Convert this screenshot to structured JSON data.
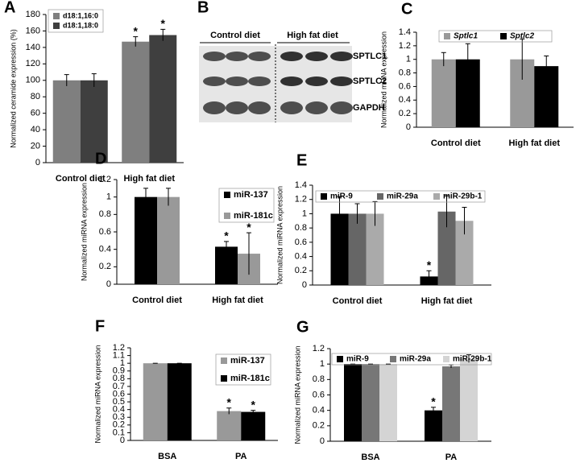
{
  "chart_data": [
    {
      "type": "bar",
      "panel": "A",
      "ylabel": "Normalized ceramide expression (%)",
      "categories": [
        "Control diet",
        "High fat diet"
      ],
      "ylim": [
        0,
        180
      ],
      "yticks": [
        0,
        20,
        40,
        60,
        80,
        100,
        120,
        140,
        160,
        180
      ],
      "legend": "upper left",
      "series": [
        {
          "name": "d18:1,16:0",
          "color": "#7f7f7f",
          "values": [
            100,
            147
          ],
          "errors": [
            7,
            6
          ],
          "significance": [
            null,
            "*"
          ]
        },
        {
          "name": "d18:1,18:0",
          "color": "#3f3f3f",
          "values": [
            100,
            155
          ],
          "errors": [
            8,
            7
          ],
          "significance": [
            null,
            "*"
          ]
        }
      ]
    },
    {
      "type": "blot",
      "panel": "B",
      "groups": [
        "Control diet",
        "High fat diet"
      ],
      "bands": [
        "SPTLC1",
        "SPTLC2",
        "GAPDH"
      ]
    },
    {
      "type": "bar",
      "panel": "C",
      "ylabel": "Normalized mRNA expression",
      "categories": [
        "Control diet",
        "High fat diet"
      ],
      "ylim": [
        0,
        1.4
      ],
      "yticks": [
        0,
        0.2,
        0.4,
        0.6,
        0.8,
        1,
        1.2,
        1.4
      ],
      "legend": "upper center",
      "series": [
        {
          "name": "Sptlc1",
          "color": "#999999",
          "values": [
            1,
            1
          ],
          "errors": [
            0.1,
            0.3
          ]
        },
        {
          "name": "Sptlc2",
          "color": "#000000",
          "values": [
            1,
            0.9
          ],
          "errors": [
            0.23,
            0.15
          ]
        }
      ]
    },
    {
      "type": "bar",
      "panel": "D",
      "ylabel": "Normalized miRNA expression",
      "categories": [
        "Control diet",
        "High fat diet"
      ],
      "ylim": [
        0,
        1.2
      ],
      "yticks": [
        0,
        0.2,
        0.4,
        0.6,
        0.8,
        1,
        1.2
      ],
      "legend": "upper right",
      "series": [
        {
          "name": "miR-137",
          "color": "#000000",
          "values": [
            1,
            0.43
          ],
          "errors": [
            0.1,
            0.06
          ],
          "significance": [
            null,
            "*"
          ]
        },
        {
          "name": "miR-181c",
          "color": "#999999",
          "values": [
            1,
            0.35
          ],
          "errors": [
            0.1,
            0.24
          ],
          "significance": [
            null,
            "*"
          ]
        }
      ]
    },
    {
      "type": "bar",
      "panel": "E",
      "ylabel": "Normalized miRNA expression",
      "categories": [
        "Control diet",
        "High fat diet"
      ],
      "ylim": [
        0,
        1.4
      ],
      "yticks": [
        0,
        0.2,
        0.4,
        0.6,
        0.8,
        1,
        1.2,
        1.4
      ],
      "legend": "upper center",
      "series": [
        {
          "name": "miR-9",
          "color": "#000000",
          "values": [
            1,
            0.12
          ],
          "errors": [
            0.24,
            0.08
          ],
          "significance": [
            null,
            "*"
          ]
        },
        {
          "name": "miR-29a",
          "color": "#666666",
          "values": [
            1,
            1.03
          ],
          "errors": [
            0.14,
            0.22
          ]
        },
        {
          "name": "miR-29b-1",
          "color": "#aaaaaa",
          "values": [
            1,
            0.9
          ],
          "errors": [
            0.17,
            0.19
          ]
        }
      ]
    },
    {
      "type": "bar",
      "panel": "F",
      "ylabel": "Normalized miRNA expression",
      "categories": [
        "BSA",
        "PA"
      ],
      "ylim": [
        0,
        1.2
      ],
      "yticks": [
        0,
        0.1,
        0.2,
        0.3,
        0.4,
        0.5,
        0.6,
        0.7,
        0.8,
        0.9,
        1,
        1.1,
        1.2
      ],
      "legend": "upper right",
      "series": [
        {
          "name": "miR-137",
          "color": "#999999",
          "values": [
            1,
            0.38
          ],
          "errors": [
            0,
            0.04
          ],
          "significance": [
            null,
            "*"
          ]
        },
        {
          "name": "miR-181c",
          "color": "#000000",
          "values": [
            1,
            0.37
          ],
          "errors": [
            0,
            0.02
          ],
          "significance": [
            null,
            "*"
          ]
        }
      ]
    },
    {
      "type": "bar",
      "panel": "G",
      "ylabel": "Normalized miRNA expression",
      "categories": [
        "BSA",
        "PA"
      ],
      "ylim": [
        0,
        1.2
      ],
      "yticks": [
        0,
        0.2,
        0.4,
        0.6,
        0.8,
        1,
        1.2
      ],
      "legend": "upper center",
      "series": [
        {
          "name": "miR-9",
          "color": "#000000",
          "values": [
            1,
            0.4
          ],
          "errors": [
            0,
            0.04
          ],
          "significance": [
            null,
            "*"
          ]
        },
        {
          "name": "miR-29a",
          "color": "#777777",
          "values": [
            1,
            0.97
          ],
          "errors": [
            0,
            0.02
          ]
        },
        {
          "name": "miR-29b-1",
          "color": "#d4d4d4",
          "values": [
            1,
            1.07
          ],
          "errors": [
            0,
            0.05
          ]
        }
      ]
    }
  ]
}
